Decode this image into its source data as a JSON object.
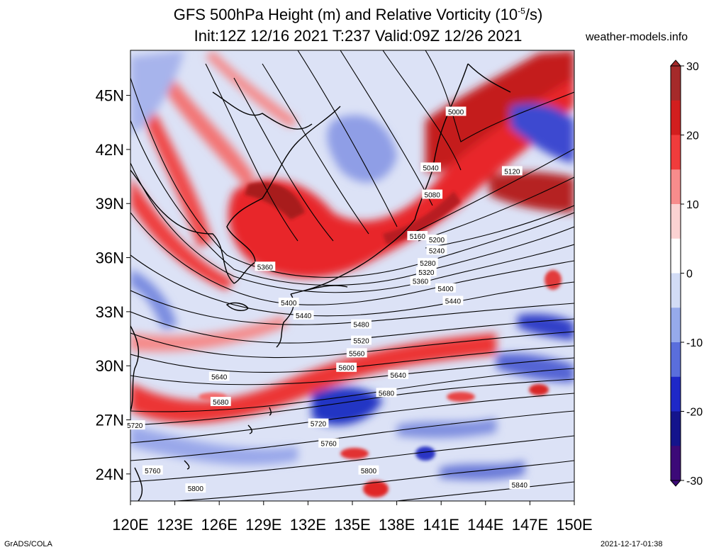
{
  "title_line1": "GFS 500hPa Height (m) and Relative Vorticity (10",
  "title_sup": "-5",
  "title_line1_end": "/s)",
  "title_line2": "Init:12Z 12/16 2021 T:237 Valid:09Z 12/26 2021",
  "site": "weather-models.info",
  "footer_left": "GrADS/COLA",
  "footer_right": "2021-12-17-01:38",
  "lon_ticks": [
    "120E",
    "123E",
    "126E",
    "129E",
    "132E",
    "135E",
    "138E",
    "141E",
    "144E",
    "147E",
    "150E"
  ],
  "lat_ticks": [
    "24N",
    "27N",
    "30N",
    "33N",
    "36N",
    "39N",
    "42N",
    "45N"
  ],
  "colorbar": {
    "ticks": [
      "30",
      "20",
      "10",
      "0",
      "-10",
      "-20",
      "-30"
    ],
    "colors": [
      "#a52a2a",
      "#d21e1e",
      "#f03c3c",
      "#f78c8c",
      "#fbd2d2",
      "#ffffff",
      "#d2dcf5",
      "#96aaeb",
      "#5a6edc",
      "#1e28c8",
      "#14148c",
      "#3c0a78"
    ]
  },
  "chart_data": {
    "type": "map",
    "variable": "500hPa geopotential height contours (m) over relative vorticity shading (10^-5/s)",
    "extent": {
      "lon": [
        120,
        150
      ],
      "lat": [
        22.5,
        47.5
      ]
    },
    "contour_labels": [
      {
        "value": 5000,
        "lon": 142.0,
        "lat": 44.1
      },
      {
        "value": 5040,
        "lon": 140.3,
        "lat": 41.0
      },
      {
        "value": 5080,
        "lon": 140.4,
        "lat": 39.5
      },
      {
        "value": 5120,
        "lon": 145.8,
        "lat": 40.8
      },
      {
        "value": 5160,
        "lon": 139.4,
        "lat": 37.2
      },
      {
        "value": 5200,
        "lon": 140.7,
        "lat": 37.0
      },
      {
        "value": 5240,
        "lon": 140.7,
        "lat": 36.4
      },
      {
        "value": 5280,
        "lon": 140.1,
        "lat": 35.7
      },
      {
        "value": 5320,
        "lon": 140.0,
        "lat": 35.2
      },
      {
        "value": 5360,
        "lon": 129.1,
        "lat": 35.5
      },
      {
        "value": 5360,
        "lon": 139.6,
        "lat": 34.7
      },
      {
        "value": 5400,
        "lon": 130.7,
        "lat": 33.5
      },
      {
        "value": 5400,
        "lon": 141.3,
        "lat": 34.3
      },
      {
        "value": 5440,
        "lon": 131.7,
        "lat": 32.8
      },
      {
        "value": 5440,
        "lon": 141.8,
        "lat": 33.6
      },
      {
        "value": 5480,
        "lon": 135.6,
        "lat": 32.3
      },
      {
        "value": 5520,
        "lon": 135.6,
        "lat": 31.4
      },
      {
        "value": 5560,
        "lon": 135.3,
        "lat": 30.7
      },
      {
        "value": 5600,
        "lon": 134.6,
        "lat": 29.9
      },
      {
        "value": 5640,
        "lon": 126.0,
        "lat": 29.4
      },
      {
        "value": 5640,
        "lon": 138.1,
        "lat": 29.5
      },
      {
        "value": 5680,
        "lon": 126.1,
        "lat": 28.0
      },
      {
        "value": 5680,
        "lon": 137.3,
        "lat": 28.5
      },
      {
        "value": 5720,
        "lon": 120.3,
        "lat": 26.7
      },
      {
        "value": 5720,
        "lon": 132.7,
        "lat": 26.8
      },
      {
        "value": 5760,
        "lon": 121.5,
        "lat": 24.2
      },
      {
        "value": 5760,
        "lon": 133.4,
        "lat": 25.7
      },
      {
        "value": 5800,
        "lon": 124.4,
        "lat": 23.2
      },
      {
        "value": 5800,
        "lon": 136.1,
        "lat": 24.2
      },
      {
        "value": 5840,
        "lon": 146.3,
        "lat": 23.4
      }
    ],
    "colorbar": {
      "min": -30,
      "max": 30,
      "units": "10^-5/s"
    }
  }
}
